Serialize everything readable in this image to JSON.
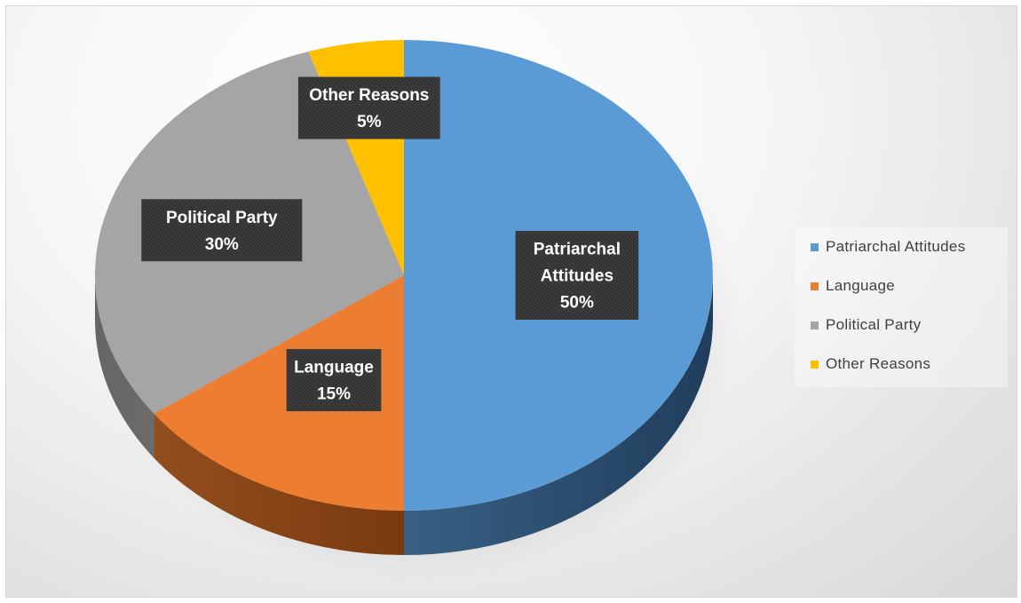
{
  "chart_data": {
    "type": "pie",
    "categories": [
      "Patriarchal Attitudes",
      "Language",
      "Political Party",
      "Other Reasons"
    ],
    "values": [
      50,
      15,
      30,
      5
    ],
    "colors": [
      "#5b9bd5",
      "#ed7d31",
      "#a5a5a5",
      "#ffc000"
    ],
    "side_colors": [
      "#203d5c",
      "#7a3a10",
      "#6b6b6b",
      "#8c6a00"
    ],
    "data_labels": [
      {
        "lines": [
          "Patriarchal",
          "Attitudes",
          "50%"
        ]
      },
      {
        "lines": [
          "Language",
          "15%"
        ]
      },
      {
        "lines": [
          "Political Party",
          "30%"
        ]
      },
      {
        "lines": [
          "Other Reasons",
          "5%"
        ]
      }
    ],
    "style": "3d",
    "legend_position": "right"
  }
}
